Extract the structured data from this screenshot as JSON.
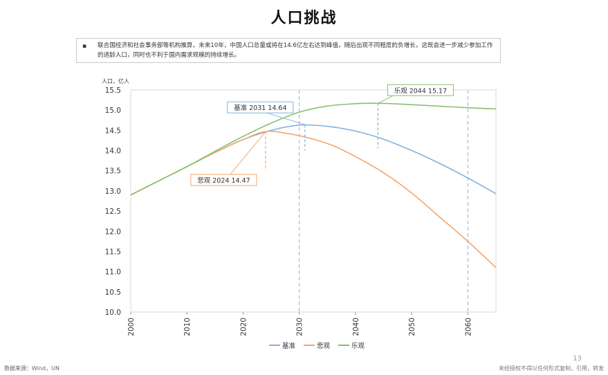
{
  "page": {
    "title": "人口挑战",
    "note": "联合国经济和社会事务部等机构推算，未来10年，中国人口总量或将在14.6亿左右达到峰值，随后出现不同程度的负增长，这既会进一步减少参加工作的适龄人口，同时也不利于国内需求规模的持续增长。",
    "source": "数据来源：Wind，UN",
    "disclaimer": "未经授权不得以任何形式复制，引用，转发",
    "page_number": "13"
  },
  "colors": {
    "baseline": "#7fb2e0",
    "pessimistic": "#f4a46c",
    "optimistic": "#86c06f",
    "grid": "#d9d9d9"
  },
  "chart_data": {
    "type": "line",
    "title": "",
    "ylabel": "人口，亿人",
    "xlim": [
      2000,
      2065
    ],
    "ylim": [
      10.0,
      15.5
    ],
    "xticks": [
      2000,
      2010,
      2020,
      2030,
      2040,
      2050,
      2060
    ],
    "yticks": [
      10.0,
      10.5,
      11.0,
      11.5,
      12.0,
      12.5,
      13.0,
      13.5,
      14.0,
      14.5,
      15.0,
      15.5
    ],
    "legend_position": "bottom",
    "grid": false,
    "series": [
      {
        "name": "基准",
        "color_key": "baseline",
        "x": [
          2000,
          2005,
          2010,
          2015,
          2020,
          2025,
          2030,
          2035,
          2040,
          2045,
          2050,
          2055,
          2060,
          2065
        ],
        "y": [
          12.9,
          13.25,
          13.6,
          13.95,
          14.27,
          14.5,
          14.63,
          14.6,
          14.48,
          14.28,
          14.0,
          13.68,
          13.32,
          12.93
        ]
      },
      {
        "name": "悲观",
        "color_key": "pessimistic",
        "x": [
          2000,
          2005,
          2010,
          2015,
          2020,
          2024,
          2028,
          2032,
          2036,
          2040,
          2045,
          2050,
          2055,
          2060,
          2065
        ],
        "y": [
          12.9,
          13.25,
          13.6,
          13.95,
          14.27,
          14.47,
          14.42,
          14.3,
          14.12,
          13.85,
          13.45,
          12.95,
          12.35,
          11.75,
          11.1
        ]
      },
      {
        "name": "乐观",
        "color_key": "optimistic",
        "x": [
          2000,
          2005,
          2010,
          2015,
          2020,
          2025,
          2030,
          2035,
          2040,
          2044,
          2048,
          2052,
          2056,
          2060,
          2065
        ],
        "y": [
          12.9,
          13.25,
          13.6,
          13.98,
          14.35,
          14.68,
          14.95,
          15.1,
          15.16,
          15.17,
          15.15,
          15.12,
          15.09,
          15.06,
          15.03
        ]
      }
    ],
    "annotations": [
      {
        "label": "基准 2031 14.64",
        "series": "基准",
        "x": 2031,
        "y": 14.64,
        "color_key": "baseline"
      },
      {
        "label": "悲观 2024 14.47",
        "series": "悲观",
        "x": 2024,
        "y": 14.47,
        "color_key": "pessimistic"
      },
      {
        "label": "乐观 2044 15.17",
        "series": "乐观",
        "x": 2044,
        "y": 15.17,
        "color_key": "optimistic"
      }
    ],
    "reference_lines": [
      {
        "x": 2030,
        "color_key": "baseline"
      },
      {
        "x": 2060,
        "color_key": "baseline"
      }
    ]
  }
}
